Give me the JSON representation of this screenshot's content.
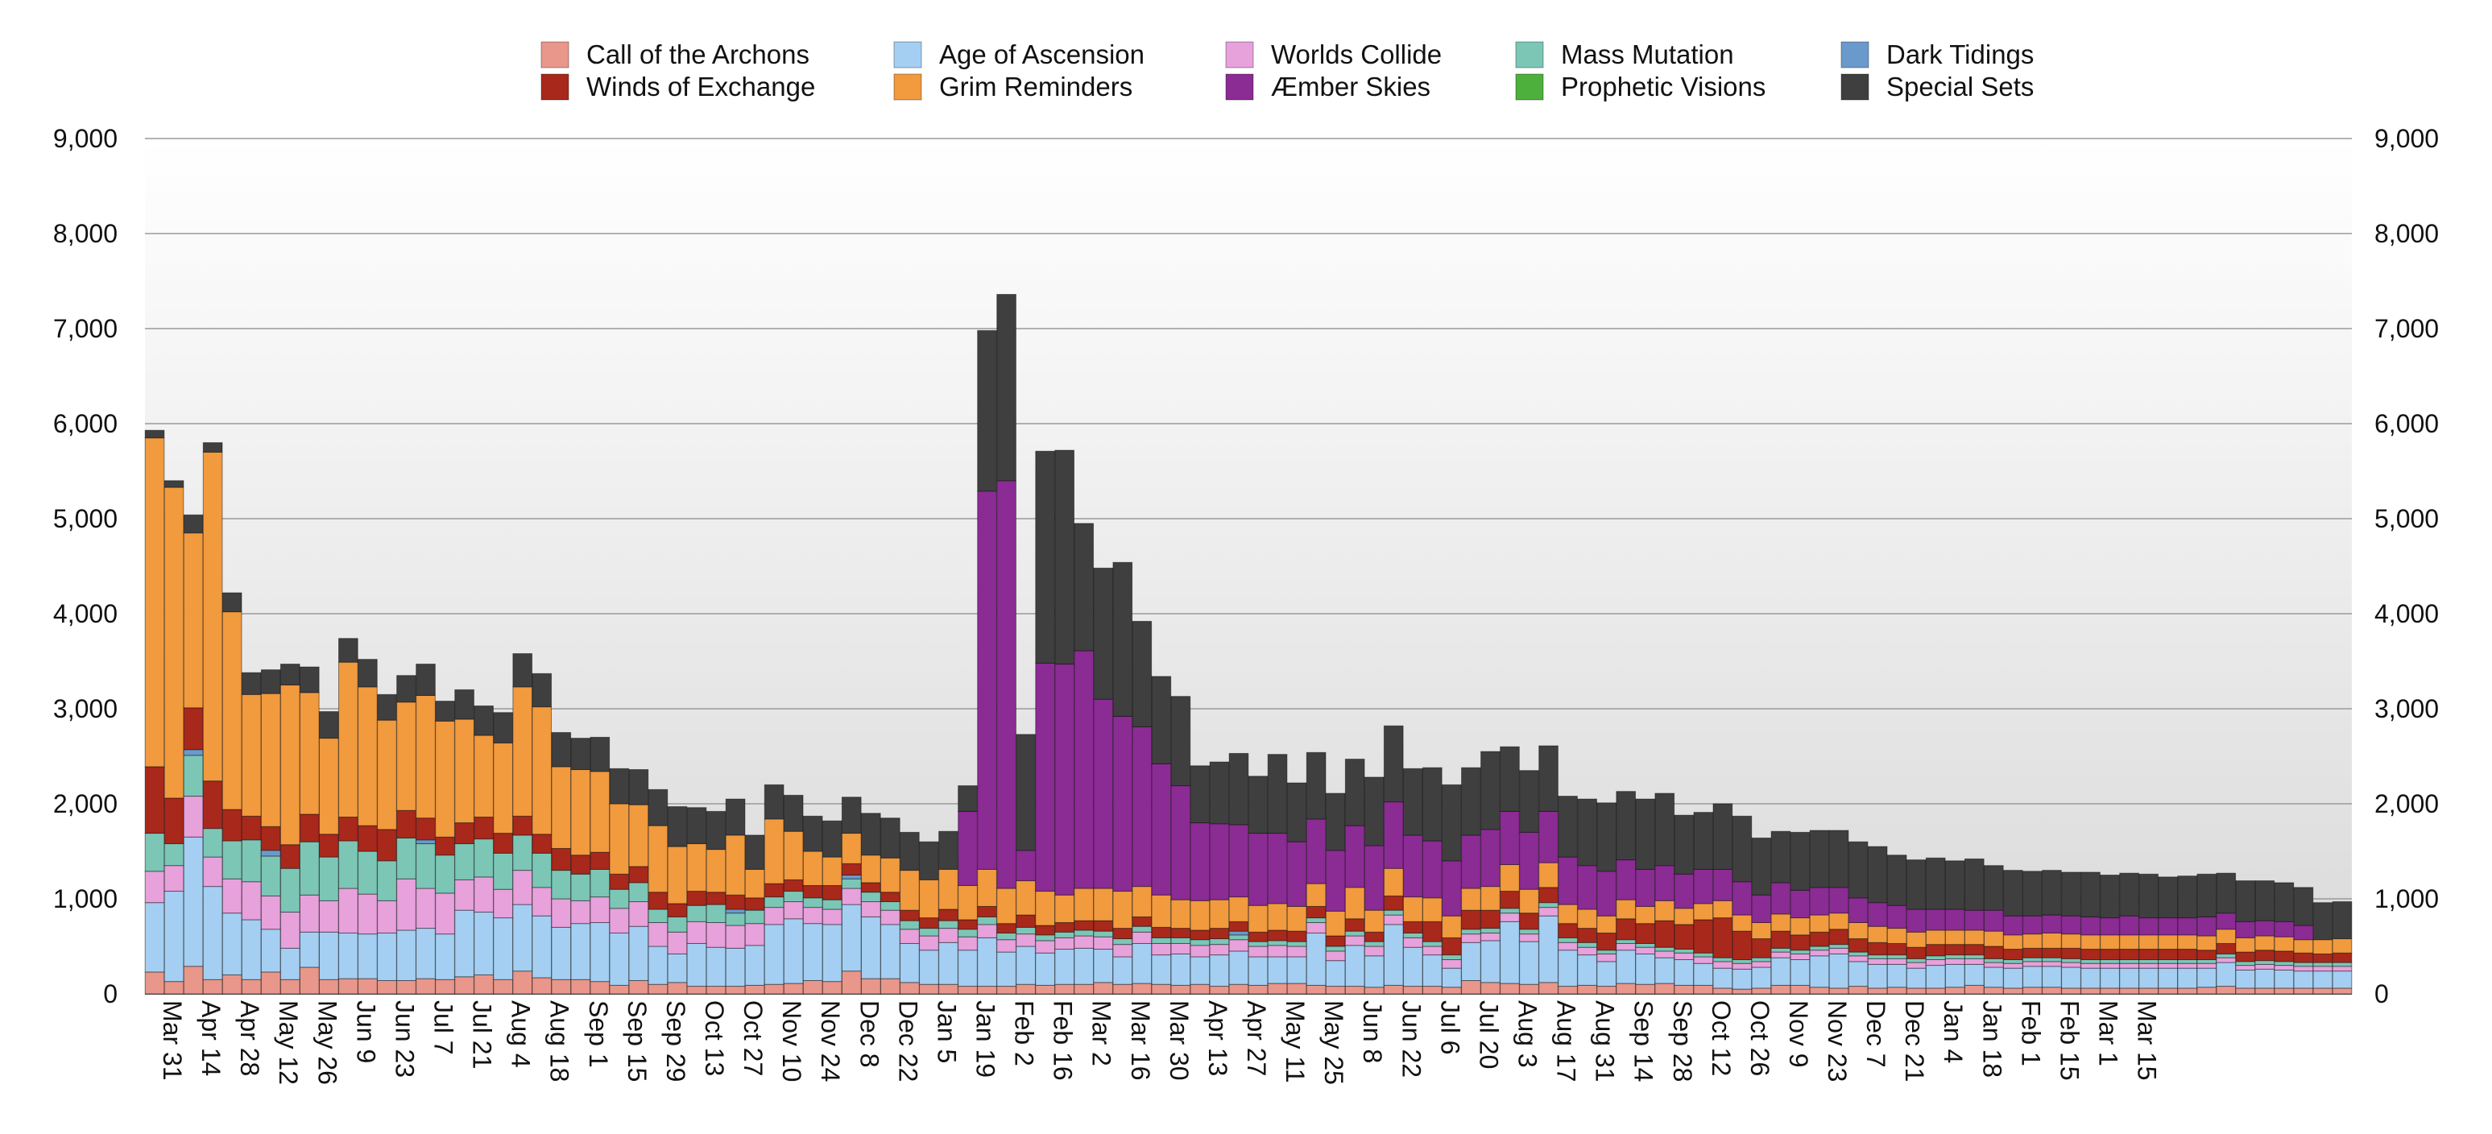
{
  "chart_data": {
    "type": "bar",
    "stacked": true,
    "grid": true,
    "legend_position": "top",
    "y_axis_sides": [
      "left",
      "right"
    ],
    "ylim": [
      0,
      9000
    ],
    "y_ticks": [
      "0",
      "1,000",
      "2,000",
      "3,000",
      "4,000",
      "5,000",
      "6,000",
      "7,000",
      "8,000",
      "9,000"
    ],
    "y_tick_values": [
      0,
      1000,
      2000,
      3000,
      4000,
      5000,
      6000,
      7000,
      8000,
      9000
    ],
    "x_tick_labels": [
      "Mar 31",
      "Apr 14",
      "Apr 28",
      "May 12",
      "May 26",
      "Jun 9",
      "Jun 23",
      "Jul 7",
      "Jul 21",
      "Aug 4",
      "Aug 18",
      "Sep 1",
      "Sep 15",
      "Sep 29",
      "Oct 13",
      "Oct 27",
      "Nov 10",
      "Nov 24",
      "Dec 8",
      "Dec 22",
      "Jan 5",
      "Jan 19",
      "Feb 2",
      "Feb 16",
      "Mar 2",
      "Mar 16",
      "Mar 30",
      "Apr 13",
      "Apr 27",
      "May 11",
      "May 25",
      "Jun 8",
      "Jun 22",
      "Jul 6",
      "Jul 20",
      "Aug 3",
      "Aug 17",
      "Aug 31",
      "Sep 14",
      "Sep 28",
      "Oct 12",
      "Oct 26",
      "Nov 9",
      "Nov 23",
      "Dec 7",
      "Dec 21",
      "Jan 4",
      "Jan 18",
      "Feb 1",
      "Feb 15",
      "Mar 1",
      "Mar 15"
    ],
    "bars_per_tick": 2,
    "series": [
      {
        "name": "Call of the Archons",
        "color": "#E8978A",
        "values": [
          230,
          130,
          290,
          150,
          200,
          150,
          230,
          150,
          280,
          150,
          160,
          160,
          140,
          140,
          160,
          150,
          180,
          200,
          150,
          240,
          170,
          150,
          150,
          130,
          90,
          140,
          100,
          120,
          80,
          80,
          80,
          90,
          100,
          110,
          140,
          130,
          240,
          160,
          160,
          120,
          100,
          100,
          80,
          80,
          80,
          100,
          90,
          100,
          100,
          120,
          100,
          110,
          100,
          90,
          100,
          80,
          100,
          90,
          110,
          110,
          90,
          80,
          80,
          70,
          90,
          80,
          80,
          70,
          140,
          120,
          110,
          100,
          120,
          80,
          90,
          80,
          110,
          100,
          110,
          90,
          90,
          60,
          50,
          60,
          90,
          90,
          70,
          60,
          80,
          60,
          70,
          60,
          60,
          70,
          90,
          70,
          60,
          70,
          70,
          60,
          60,
          60,
          60,
          60,
          60,
          60,
          70,
          80,
          60,
          60,
          60,
          60,
          60,
          60
        ]
      },
      {
        "name": "Age of Ascension",
        "color": "#A4CFF2",
        "values": [
          730,
          950,
          1360,
          980,
          650,
          630,
          450,
          330,
          370,
          500,
          480,
          470,
          500,
          530,
          530,
          480,
          700,
          660,
          650,
          700,
          650,
          550,
          590,
          620,
          550,
          570,
          400,
          300,
          450,
          410,
          400,
          420,
          630,
          680,
          600,
          600,
          700,
          650,
          570,
          410,
          360,
          440,
          380,
          510,
          360,
          400,
          340,
          370,
          380,
          350,
          290,
          420,
          310,
          330,
          290,
          330,
          350,
          300,
          280,
          280,
          550,
          270,
          430,
          330,
          640,
          410,
          330,
          200,
          400,
          440,
          650,
          450,
          700,
          380,
          320,
          260,
          350,
          320,
          270,
          270,
          230,
          210,
          210,
          220,
          290,
          270,
          330,
          360,
          260,
          250,
          240,
          210,
          240,
          240,
          220,
          210,
          210,
          220,
          220,
          220,
          210,
          210,
          210,
          210,
          210,
          210,
          200,
          250,
          190,
          200,
          190,
          180,
          180,
          180
        ]
      },
      {
        "name": "Worlds Collide",
        "color": "#E7A1DB",
        "values": [
          330,
          270,
          430,
          310,
          360,
          400,
          350,
          380,
          390,
          330,
          470,
          420,
          340,
          540,
          420,
          430,
          320,
          370,
          300,
          360,
          300,
          300,
          240,
          270,
          260,
          260,
          250,
          230,
          230,
          260,
          240,
          230,
          180,
          180,
          170,
          160,
          170,
          160,
          150,
          150,
          150,
          150,
          140,
          140,
          130,
          130,
          130,
          120,
          130,
          130,
          130,
          120,
          120,
          110,
          120,
          110,
          120,
          110,
          120,
          110,
          110,
          100,
          100,
          100,
          100,
          100,
          90,
          90,
          90,
          80,
          90,
          80,
          90,
          80,
          80,
          80,
          70,
          70,
          70,
          70,
          70,
          70,
          60,
          60,
          60,
          60,
          60,
          60,
          60,
          60,
          60,
          60,
          60,
          60,
          60,
          50,
          50,
          50,
          50,
          50,
          50,
          50,
          50,
          50,
          50,
          50,
          50,
          50,
          50,
          50,
          50,
          50,
          50,
          50
        ]
      },
      {
        "name": "Mass Mutation",
        "color": "#7CC6B6",
        "values": [
          400,
          230,
          430,
          300,
          400,
          440,
          420,
          460,
          560,
          460,
          500,
          450,
          420,
          430,
          470,
          400,
          380,
          400,
          380,
          370,
          360,
          300,
          280,
          290,
          200,
          200,
          140,
          160,
          170,
          190,
          130,
          140,
          110,
          110,
          100,
          100,
          100,
          100,
          90,
          90,
          80,
          80,
          80,
          80,
          70,
          70,
          60,
          60,
          60,
          60,
          60,
          60,
          60,
          60,
          60,
          60,
          50,
          50,
          50,
          50,
          50,
          50,
          50,
          50,
          50,
          50,
          50,
          50,
          50,
          50,
          50,
          50,
          50,
          50,
          50,
          40,
          40,
          40,
          40,
          40,
          40,
          40,
          40,
          40,
          40,
          40,
          40,
          40,
          40,
          40,
          40,
          40,
          40,
          40,
          40,
          40,
          40,
          40,
          40,
          40,
          40,
          40,
          40,
          40,
          40,
          40,
          40,
          40,
          40,
          40,
          40,
          40,
          40,
          40
        ]
      },
      {
        "name": "Dark Tidings",
        "color": "#6A9ACC",
        "values": [
          0,
          0,
          60,
          0,
          0,
          0,
          60,
          0,
          0,
          0,
          0,
          0,
          0,
          0,
          40,
          0,
          0,
          0,
          0,
          0,
          0,
          0,
          0,
          0,
          0,
          0,
          0,
          0,
          0,
          0,
          40,
          0,
          0,
          0,
          0,
          0,
          40,
          0,
          0,
          0,
          0,
          0,
          0,
          0,
          0,
          0,
          0,
          0,
          0,
          0,
          0,
          0,
          0,
          0,
          0,
          0,
          40,
          0,
          0,
          0,
          0,
          0,
          0,
          0,
          0,
          0,
          0,
          0,
          0,
          0,
          0,
          0,
          0,
          0,
          0,
          0,
          0,
          0,
          0,
          0,
          0,
          0,
          0,
          0,
          0,
          0,
          0,
          0,
          0,
          0,
          0,
          0,
          0,
          0,
          0,
          0,
          0,
          0,
          0,
          0,
          0,
          0,
          0,
          0,
          0,
          0,
          0,
          0,
          0,
          0,
          0,
          0,
          0,
          0
        ]
      },
      {
        "name": "Winds of Exchange",
        "color": "#A8281B",
        "values": [
          700,
          480,
          440,
          500,
          330,
          250,
          250,
          250,
          290,
          240,
          250,
          270,
          330,
          290,
          230,
          190,
          220,
          230,
          210,
          200,
          200,
          230,
          200,
          180,
          160,
          170,
          180,
          140,
          150,
          130,
          150,
          130,
          140,
          120,
          130,
          150,
          120,
          100,
          100,
          110,
          110,
          120,
          100,
          110,
          100,
          130,
          100,
          100,
          100,
          110,
          110,
          100,
          110,
          100,
          100,
          110,
          100,
          100,
          110,
          110,
          120,
          110,
          130,
          100,
          150,
          120,
          210,
          180,
          200,
          190,
          180,
          170,
          160,
          150,
          150,
          180,
          220,
          210,
          280,
          260,
          350,
          420,
          300,
          200,
          180,
          160,
          150,
          160,
          140,
          130,
          120,
          120,
          120,
          110,
          110,
          130,
          110,
          100,
          100,
          110,
          110,
          110,
          110,
          110,
          110,
          110,
          100,
          110,
          100,
          110,
          110,
          100,
          90,
          100
        ]
      },
      {
        "name": "Grim Reminders",
        "color": "#F19A3E",
        "values": [
          3460,
          3270,
          1840,
          3460,
          2080,
          1280,
          1400,
          1680,
          1280,
          1010,
          1630,
          1460,
          1150,
          1140,
          1290,
          1220,
          1090,
          860,
          950,
          1360,
          1340,
          860,
          900,
          850,
          740,
          650,
          700,
          600,
          500,
          450,
          630,
          300,
          680,
          510,
          360,
          300,
          320,
          290,
          360,
          420,
          400,
          420,
          360,
          390,
          370,
          360,
          360,
          290,
          340,
          340,
          390,
          320,
          340,
          300,
          310,
          300,
          260,
          280,
          280,
          260,
          240,
          260,
          330,
          230,
          290,
          260,
          250,
          230,
          230,
          250,
          280,
          250,
          260,
          200,
          200,
          180,
          200,
          180,
          210,
          170,
          170,
          180,
          170,
          170,
          180,
          180,
          180,
          170,
          170,
          170,
          160,
          160,
          150,
          150,
          150,
          160,
          150,
          150,
          160,
          150,
          150,
          150,
          150,
          150,
          150,
          150,
          150,
          150,
          150,
          150,
          150,
          140,
          150,
          150
        ]
      },
      {
        "name": "Æmber Skies",
        "color": "#8B2B94",
        "values": [
          0,
          0,
          0,
          0,
          0,
          0,
          0,
          0,
          0,
          0,
          0,
          0,
          0,
          0,
          0,
          0,
          0,
          0,
          0,
          0,
          0,
          0,
          0,
          0,
          0,
          0,
          0,
          0,
          0,
          0,
          0,
          0,
          0,
          0,
          0,
          0,
          0,
          0,
          0,
          0,
          0,
          0,
          780,
          3980,
          4290,
          320,
          2400,
          2430,
          2500,
          1990,
          1840,
          1680,
          1380,
          1200,
          820,
          800,
          760,
          760,
          740,
          680,
          680,
          640,
          650,
          680,
          700,
          650,
          600,
          580,
          560,
          600,
          560,
          600,
          540,
          500,
          460,
          470,
          420,
          390,
          370,
          360,
          360,
          330,
          350,
          290,
          330,
          290,
          290,
          270,
          260,
          250,
          240,
          240,
          220,
          220,
          210,
          220,
          200,
          190,
          190,
          190,
          190,
          180,
          200,
          180,
          180,
          180,
          200,
          170,
          170,
          160,
          160,
          150
        ]
      },
      {
        "name": "Prophetic Visions",
        "color": "#4DB03C",
        "values": [
          0,
          0,
          0,
          0,
          0,
          0,
          0,
          0,
          0,
          0,
          0,
          0,
          0,
          0,
          0,
          0,
          0,
          0,
          0,
          0,
          0,
          0,
          0,
          0,
          0,
          0,
          0,
          0,
          0,
          0,
          0,
          0,
          0,
          0,
          0,
          0,
          0,
          0,
          0,
          0,
          0,
          0,
          0,
          0,
          0,
          0,
          0,
          0,
          0,
          0,
          0,
          0,
          0,
          0,
          0,
          0,
          0,
          0,
          0,
          0,
          0,
          0,
          0,
          0,
          0,
          0,
          0,
          0,
          0,
          0,
          0,
          0,
          0,
          0,
          0,
          0,
          0,
          0,
          0,
          0,
          0,
          0,
          0,
          0,
          0,
          0,
          0,
          0,
          0,
          0,
          0,
          0,
          0,
          0,
          0,
          0,
          0,
          0,
          0,
          0,
          0,
          0,
          0,
          0,
          0,
          0,
          0,
          0,
          0,
          0,
          0,
          0,
          0,
          0
        ]
      },
      {
        "name": "Special Sets",
        "color": "#3F3F3F",
        "values": [
          80,
          70,
          190,
          100,
          200,
          230,
          250,
          220,
          270,
          280,
          250,
          290,
          270,
          280,
          330,
          210,
          310,
          310,
          320,
          350,
          350,
          360,
          330,
          360,
          370,
          370,
          380,
          420,
          380,
          400,
          380,
          360,
          360,
          380,
          370,
          380,
          380,
          440,
          420,
          400,
          400,
          400,
          270,
          1690,
          1960,
          1220,
          2230,
          2250,
          1340,
          1380,
          1620,
          1110,
          920,
          940,
          600,
          650,
          750,
          600,
          830,
          620,
          700,
          600,
          700,
          720,
          800,
          700,
          770,
          800,
          710,
          820,
          680,
          650,
          690,
          640,
          700,
          720,
          720,
          740,
          760,
          620,
          600,
          690,
          690,
          600,
          540,
          610,
          600,
          600,
          590,
          590,
          530,
          520,
          540,
          510,
          540,
          470,
          480,
          470,
          470,
          460,
          470,
          450,
          450,
          460,
          430,
          440,
          450,
          420,
          430,
          420,
          410,
          400,
          390,
          390
        ]
      }
    ]
  },
  "legend": {
    "items": [
      {
        "label": "Call of the Archons",
        "color": "#E8978A"
      },
      {
        "label": "Winds of Exchange",
        "color": "#A8281B"
      },
      {
        "label": "Age of Ascension",
        "color": "#A4CFF2"
      },
      {
        "label": "Grim Reminders",
        "color": "#F19A3E"
      },
      {
        "label": "Worlds Collide",
        "color": "#E7A1DB"
      },
      {
        "label": "Æmber Skies",
        "color": "#8B2B94"
      },
      {
        "label": "Mass Mutation",
        "color": "#7CC6B6"
      },
      {
        "label": "Prophetic Visions",
        "color": "#4DB03C"
      },
      {
        "label": "Dark Tidings",
        "color": "#6A9ACC"
      },
      {
        "label": "Special Sets",
        "color": "#3F3F3F"
      }
    ]
  }
}
